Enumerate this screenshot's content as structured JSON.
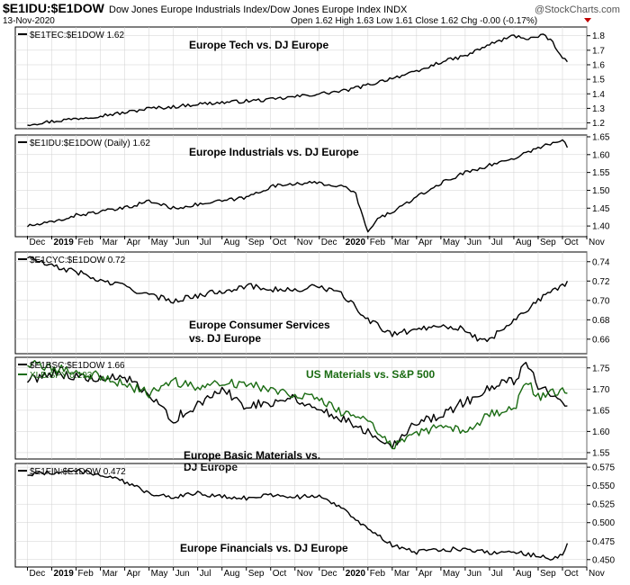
{
  "header": {
    "symbol": "$E1IDU:$E1DOW",
    "description": "Dow Jones Europe Industrials Index/Dow Jones Europe Index INDX",
    "date": "13-Nov-2020",
    "ohlc": "Open 1.62  High 1.63  Low 1.61  Close 1.62  Chg -0.00 (-0.17%)",
    "watermark": "@StockCharts.com"
  },
  "x_axis": {
    "months": [
      "Dec",
      "2019",
      "Feb",
      "Mar",
      "Apr",
      "May",
      "Jun",
      "Jul",
      "Aug",
      "Sep",
      "Oct",
      "Nov",
      "Dec",
      "2020",
      "Feb",
      "Mar",
      "Apr",
      "May",
      "Jun",
      "Jul",
      "Aug",
      "Sep",
      "Oct",
      "Nov"
    ]
  },
  "colors": {
    "primary": "#000000",
    "secondary": "#1a6b12",
    "grid": "#d0d0d0"
  },
  "chart_data": [
    {
      "type": "line",
      "legend": "$E1TEC:$E1DOW 1.62",
      "annotation": "Europe Tech vs. DJ Europe",
      "yticks": [
        "1.2",
        "1.3",
        "1.4",
        "1.5",
        "1.6",
        "1.7",
        "1.8"
      ],
      "ylim": [
        1.16,
        1.86
      ],
      "series": [
        {
          "knots": [
            [
              0,
              1.19
            ],
            [
              1,
              1.21
            ],
            [
              2,
              1.23
            ],
            [
              3,
              1.25
            ],
            [
              4,
              1.27
            ],
            [
              5,
              1.3
            ],
            [
              6,
              1.31
            ],
            [
              7,
              1.33
            ],
            [
              8,
              1.34
            ],
            [
              9,
              1.35
            ],
            [
              10,
              1.36
            ],
            [
              11,
              1.38
            ],
            [
              12,
              1.4
            ],
            [
              13,
              1.42
            ],
            [
              14,
              1.46
            ],
            [
              15,
              1.51
            ],
            [
              16,
              1.55
            ],
            [
              17,
              1.62
            ],
            [
              18,
              1.66
            ],
            [
              19,
              1.74
            ],
            [
              20,
              1.8
            ],
            [
              20.6,
              1.78
            ],
            [
              21.2,
              1.8
            ],
            [
              21.6,
              1.76
            ],
            [
              21.9,
              1.66
            ],
            [
              22.2,
              1.62
            ]
          ],
          "step": 0.1,
          "noise": 0.012
        }
      ]
    },
    {
      "type": "line",
      "legend": "$E1IDU:$E1DOW (Daily) 1.62",
      "annotation": "Europe Industrials vs. DJ Europe",
      "yticks": [
        "1.40",
        "1.45",
        "1.50",
        "1.55",
        "1.60",
        "1.65"
      ],
      "ylim": [
        1.37,
        1.655
      ],
      "series": [
        {
          "knots": [
            [
              0,
              1.4
            ],
            [
              1,
              1.41
            ],
            [
              2,
              1.43
            ],
            [
              3,
              1.44
            ],
            [
              4,
              1.45
            ],
            [
              5,
              1.47
            ],
            [
              6,
              1.45
            ],
            [
              7,
              1.46
            ],
            [
              8,
              1.47
            ],
            [
              9,
              1.48
            ],
            [
              10,
              1.51
            ],
            [
              11,
              1.52
            ],
            [
              12,
              1.52
            ],
            [
              13,
              1.51
            ],
            [
              13.5,
              1.49
            ],
            [
              14,
              1.38
            ],
            [
              14.4,
              1.42
            ],
            [
              15,
              1.44
            ],
            [
              16,
              1.48
            ],
            [
              17,
              1.52
            ],
            [
              18,
              1.55
            ],
            [
              19,
              1.57
            ],
            [
              20,
              1.59
            ],
            [
              21,
              1.62
            ],
            [
              22,
              1.64
            ],
            [
              22.2,
              1.62
            ]
          ],
          "step": 0.1,
          "noise": 0.005
        }
      ]
    },
    {
      "type": "line",
      "legend": "$E1CYC:$E1DOW 0.72",
      "annotation": "Europe Consumer Services vs. DJ Europe",
      "yticks": [
        "0.66",
        "0.68",
        "0.70",
        "0.72",
        "0.74"
      ],
      "ylim": [
        0.645,
        0.75
      ],
      "series": [
        {
          "knots": [
            [
              0,
              0.745
            ],
            [
              1,
              0.735
            ],
            [
              2,
              0.73
            ],
            [
              3,
              0.72
            ],
            [
              4,
              0.715
            ],
            [
              5,
              0.705
            ],
            [
              6,
              0.7
            ],
            [
              7,
              0.705
            ],
            [
              8,
              0.71
            ],
            [
              9,
              0.715
            ],
            [
              10,
              0.712
            ],
            [
              11,
              0.71
            ],
            [
              12,
              0.715
            ],
            [
              13,
              0.705
            ],
            [
              14,
              0.68
            ],
            [
              15,
              0.665
            ],
            [
              16,
              0.67
            ],
            [
              17,
              0.675
            ],
            [
              18,
              0.67
            ],
            [
              18.6,
              0.658
            ],
            [
              19,
              0.66
            ],
            [
              20,
              0.68
            ],
            [
              21,
              0.7
            ],
            [
              22,
              0.715
            ],
            [
              22.2,
              0.72
            ]
          ],
          "step": 0.1,
          "noise": 0.003
        }
      ]
    },
    {
      "type": "line",
      "legend": "$E1BSC:$E1DOW 1.66",
      "legend2": "XLB:SPY 0.193",
      "annotation": "Europe Basic Materials vs. DJ Europe",
      "annotation2": "US Materials vs. S&P 500",
      "yticks": [
        "1.55",
        "1.60",
        "1.65",
        "1.70",
        "1.75"
      ],
      "ylim": [
        1.535,
        1.775
      ],
      "series": [
        {
          "knots": [
            [
              0,
              1.72
            ],
            [
              1,
              1.74
            ],
            [
              2,
              1.73
            ],
            [
              3,
              1.72
            ],
            [
              4,
              1.73
            ],
            [
              5,
              1.68
            ],
            [
              6,
              1.63
            ],
            [
              7,
              1.66
            ],
            [
              8,
              1.7
            ],
            [
              9,
              1.66
            ],
            [
              10,
              1.67
            ],
            [
              11,
              1.68
            ],
            [
              12,
              1.65
            ],
            [
              13,
              1.63
            ],
            [
              14,
              1.6
            ],
            [
              15,
              1.57
            ],
            [
              16,
              1.62
            ],
            [
              17,
              1.64
            ],
            [
              18,
              1.67
            ],
            [
              19,
              1.7
            ],
            [
              20,
              1.72
            ],
            [
              20.5,
              1.76
            ],
            [
              21,
              1.71
            ],
            [
              22,
              1.68
            ],
            [
              22.2,
              1.66
            ]
          ],
          "step": 0.1,
          "noise": 0.012
        },
        {
          "knots": [
            [
              0,
              1.76
            ],
            [
              1,
              1.75
            ],
            [
              2,
              1.74
            ],
            [
              3,
              1.73
            ],
            [
              4,
              1.71
            ],
            [
              5,
              1.69
            ],
            [
              6,
              1.72
            ],
            [
              7,
              1.7
            ],
            [
              8,
              1.72
            ],
            [
              9,
              1.71
            ],
            [
              10,
              1.7
            ],
            [
              11,
              1.69
            ],
            [
              12,
              1.68
            ],
            [
              13,
              1.64
            ],
            [
              14,
              1.63
            ],
            [
              15,
              1.56
            ],
            [
              16,
              1.6
            ],
            [
              17,
              1.61
            ],
            [
              18,
              1.6
            ],
            [
              19,
              1.64
            ],
            [
              20,
              1.65
            ],
            [
              20.5,
              1.72
            ],
            [
              21,
              1.68
            ],
            [
              22,
              1.7
            ],
            [
              22.2,
              1.69
            ]
          ],
          "step": 0.1,
          "noise": 0.011
        }
      ]
    },
    {
      "type": "line",
      "legend": "$E1FIN:$E1DOW 0.472",
      "annotation": "Europe Financials vs. DJ Europe",
      "yticks": [
        "0.450",
        "0.475",
        "0.500",
        "0.525",
        "0.550",
        "0.575"
      ],
      "ylim": [
        0.44,
        0.58
      ],
      "series": [
        {
          "knots": [
            [
              0,
              0.565
            ],
            [
              1,
              0.568
            ],
            [
              2,
              0.57
            ],
            [
              3,
              0.565
            ],
            [
              4,
              0.555
            ],
            [
              5,
              0.54
            ],
            [
              6,
              0.535
            ],
            [
              7,
              0.54
            ],
            [
              8,
              0.535
            ],
            [
              9,
              0.533
            ],
            [
              10,
              0.538
            ],
            [
              11,
              0.535
            ],
            [
              12,
              0.535
            ],
            [
              13,
              0.52
            ],
            [
              14,
              0.49
            ],
            [
              15,
              0.47
            ],
            [
              16,
              0.46
            ],
            [
              17,
              0.463
            ],
            [
              18,
              0.465
            ],
            [
              19,
              0.46
            ],
            [
              20,
              0.46
            ],
            [
              21,
              0.455
            ],
            [
              21.5,
              0.45
            ],
            [
              22,
              0.458
            ],
            [
              22.2,
              0.472
            ]
          ],
          "step": 0.1,
          "noise": 0.003
        }
      ]
    }
  ]
}
